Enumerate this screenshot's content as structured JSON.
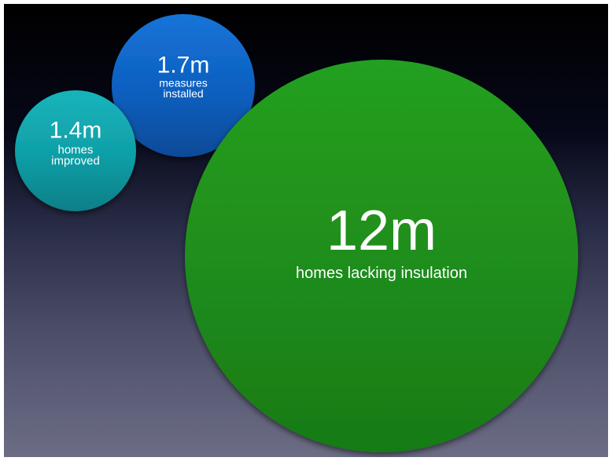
{
  "chart_data": {
    "type": "bubble",
    "bubbles": [
      {
        "value": 12,
        "unit": "m",
        "label": "12m",
        "caption": [
          "homes lacking insulation"
        ],
        "color": "#1f8c1c",
        "color_light": "#23a020",
        "color_dark": "#187a16"
      },
      {
        "value": 1.7,
        "unit": "m",
        "label": "1.7m",
        "caption": [
          "measures",
          "installed"
        ],
        "color": "#0c5fbf",
        "color_light": "#1874d8",
        "color_dark": "#0b4a98"
      },
      {
        "value": 1.4,
        "unit": "m",
        "label": "1.4m",
        "caption": [
          "homes",
          "improved"
        ],
        "color": "#109ea6",
        "color_light": "#16b4bc",
        "color_dark": "#0b7f88"
      }
    ]
  }
}
